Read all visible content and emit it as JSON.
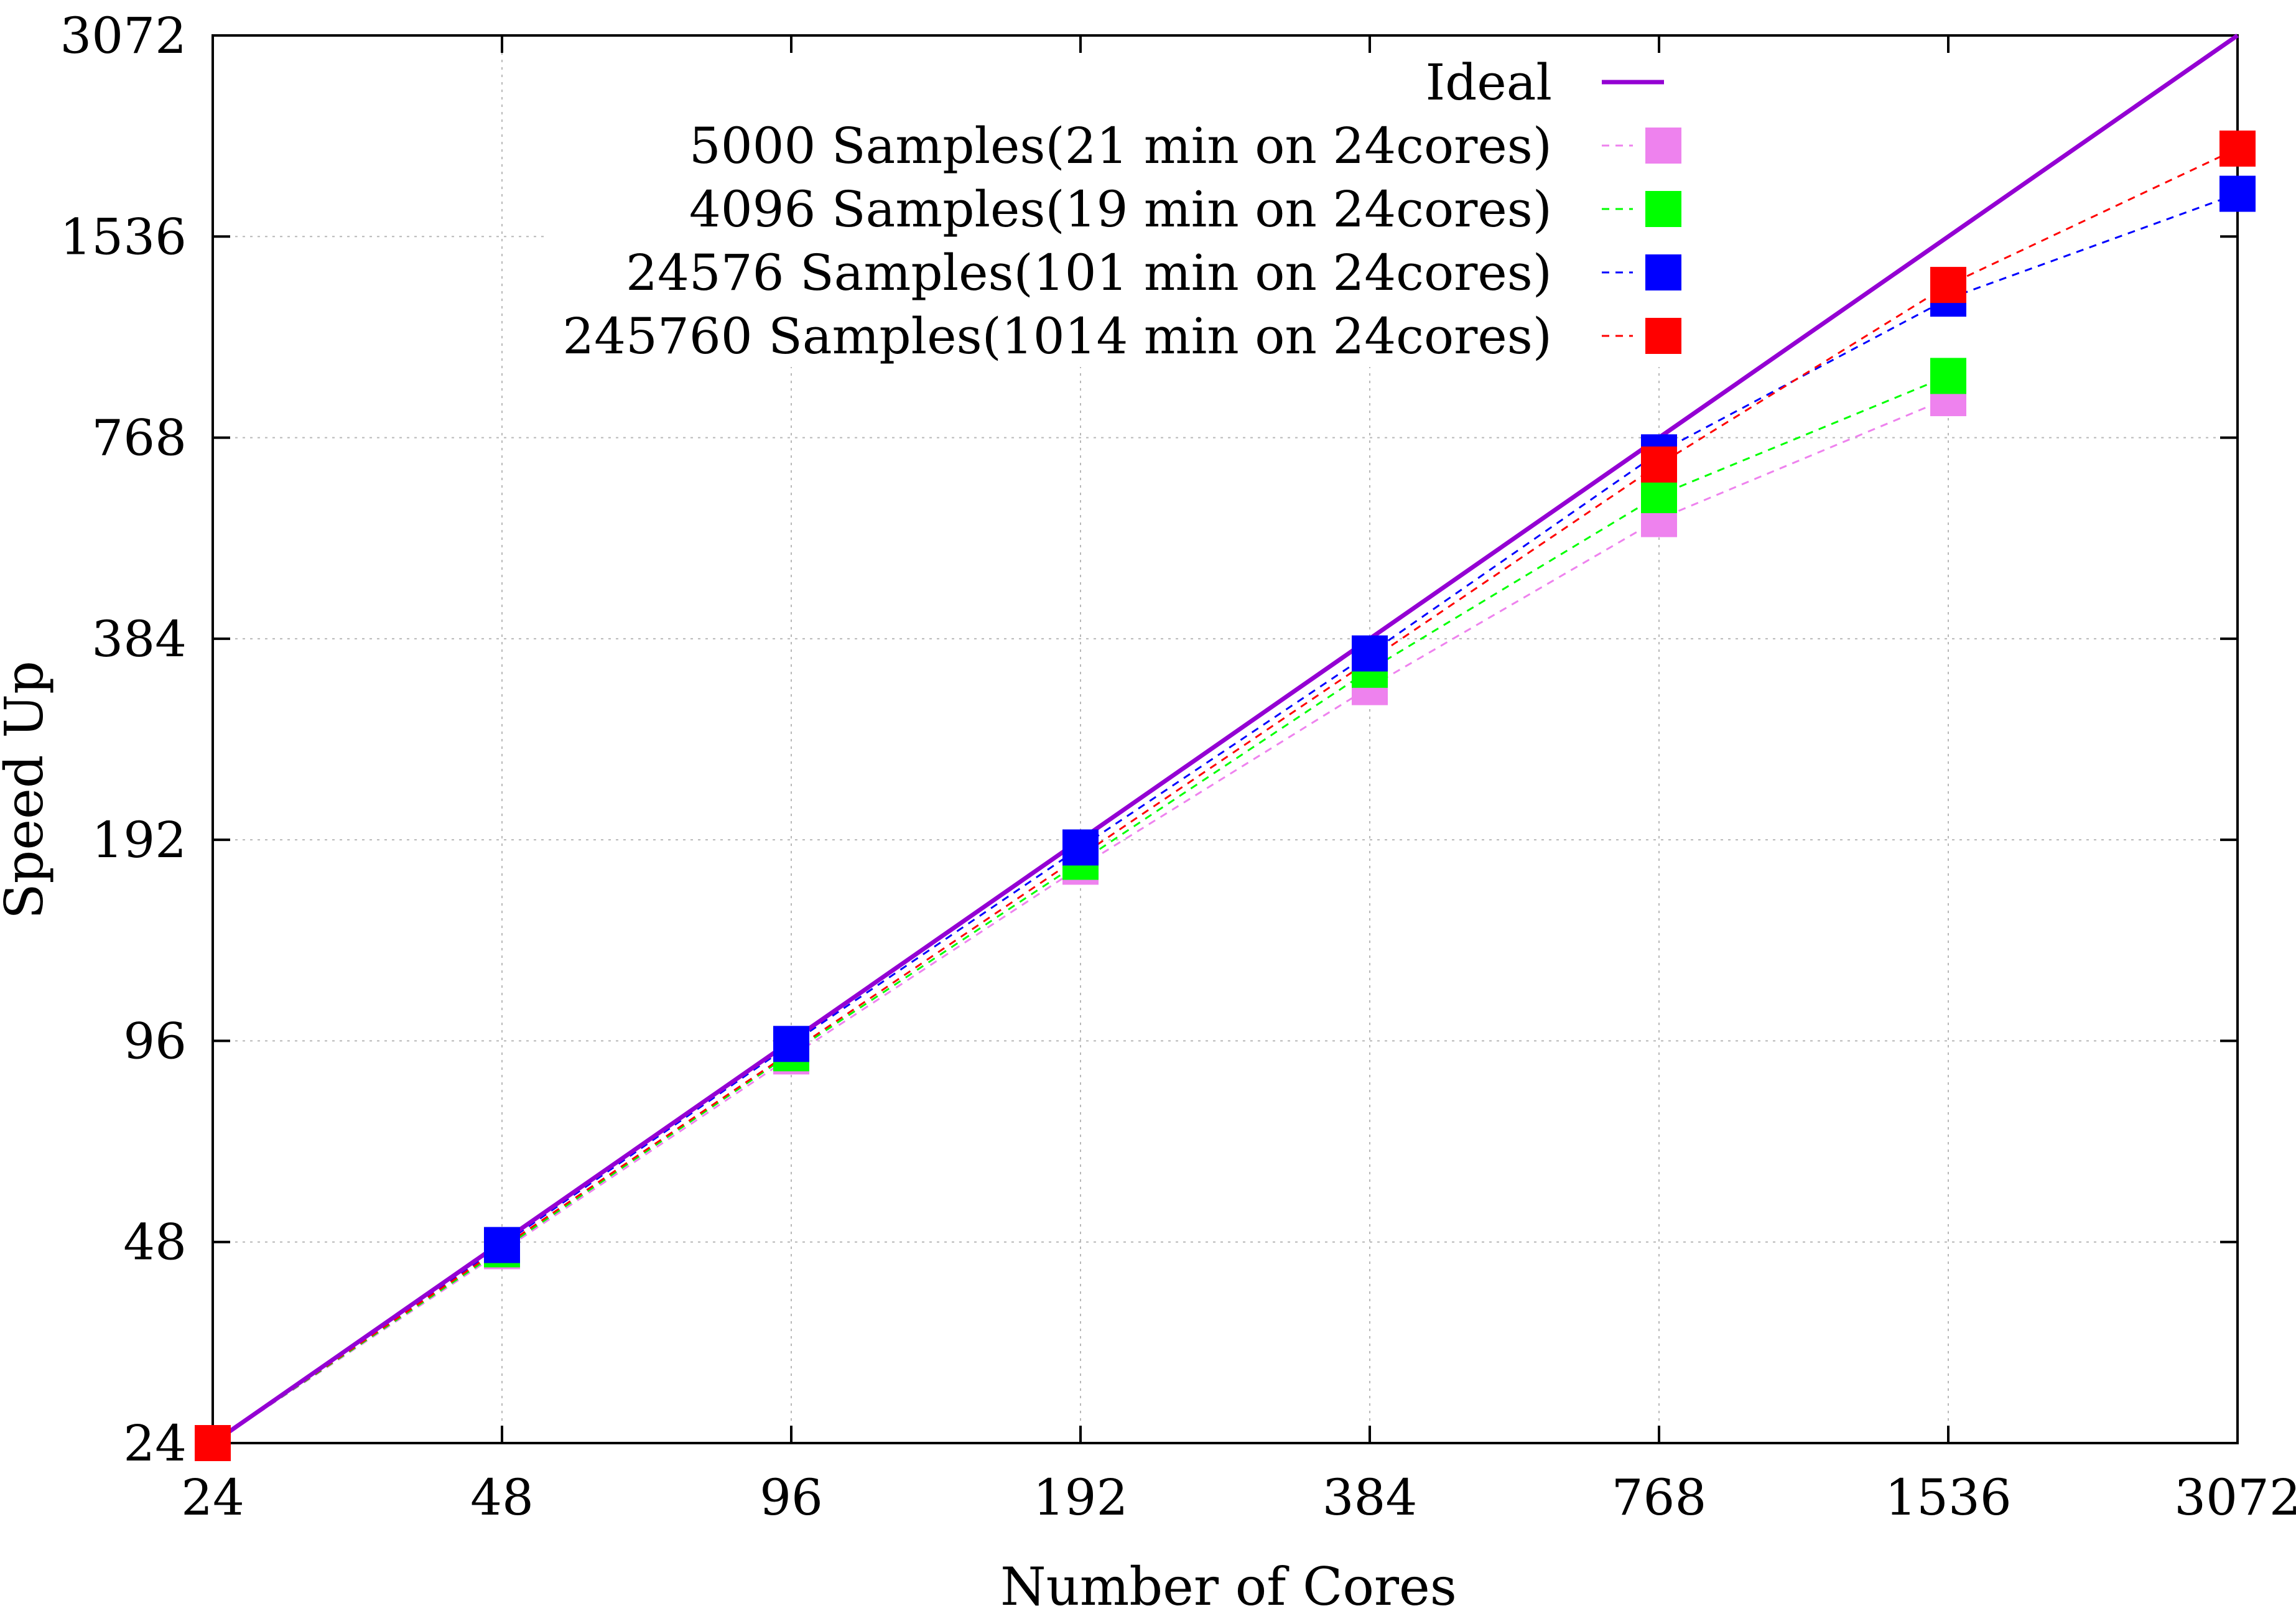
{
  "chart_data": {
    "type": "scatter",
    "xlabel": "Number of Cores",
    "ylabel": "Speed Up",
    "xscale": "log2",
    "yscale": "log2",
    "xlim": [
      24,
      3072
    ],
    "ylim": [
      24,
      3072
    ],
    "xticks": [
      24,
      48,
      96,
      192,
      384,
      768,
      1536,
      3072
    ],
    "yticks": [
      24,
      48,
      96,
      192,
      384,
      768,
      1536,
      3072
    ],
    "x_tick_labels": [
      "24",
      "48",
      "96",
      "192",
      "384",
      "768",
      "1536",
      "3072"
    ],
    "y_tick_labels": [
      "24",
      "48",
      "96",
      "192",
      "384",
      "768",
      "1536",
      "3072"
    ],
    "grid": true,
    "legend_position": "top-right",
    "ideal": {
      "name": "Ideal",
      "color": "#9400d3",
      "x": [
        24,
        3072
      ],
      "y": [
        24,
        3072
      ]
    },
    "series": [
      {
        "name": "5000 Samples(21 min on 24cores)",
        "color": "#ee82ee",
        "x": [
          24,
          48,
          96,
          192,
          384,
          768,
          1536
        ],
        "y": [
          24,
          46.5,
          91,
          175,
          325,
          580,
          880
        ]
      },
      {
        "name": "4096 Samples(19 min on 24cores)",
        "color": "#00ff00",
        "x": [
          24,
          48,
          96,
          192,
          384,
          768,
          1536
        ],
        "y": [
          24,
          46.8,
          92,
          178,
          345,
          630,
          950
        ]
      },
      {
        "name": "24576 Samples(101 min on 24cores)",
        "color": "#0000ff",
        "x": [
          24,
          48,
          96,
          192,
          384,
          768,
          1536,
          3072
        ],
        "y": [
          24,
          47.5,
          95,
          187,
          365,
          730,
          1240,
          1780
        ]
      },
      {
        "name": "245760 Samples(1014 min on 24cores)",
        "color": "#ff0000",
        "x": [
          24,
          768,
          1536,
          3072
        ],
        "y": [
          24,
          700,
          1300,
          2080
        ]
      }
    ]
  }
}
